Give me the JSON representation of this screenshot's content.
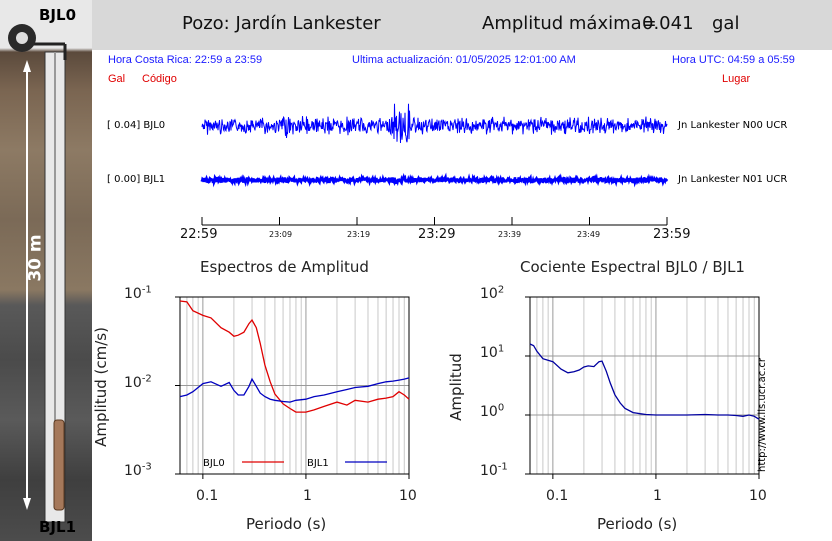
{
  "header": {
    "well": "Pozo: Jardín Lankester",
    "amplitude_label": "Amplitud máxima=",
    "amplitude_value": "0.041",
    "amplitude_unit": "gal"
  },
  "well_strip": {
    "top_label": "BJL0",
    "bottom_label": "BJL1",
    "depth": "30 m"
  },
  "info": {
    "local_time": "Hora Costa Rica:   22:59 a 23:59",
    "last_update": "Ultima actualización:  01/05/2025 12:01:00 AM",
    "utc_time": "Hora UTC:   04:59 a 05:59",
    "col_gal": "Gal",
    "col_code": "Código",
    "col_place": "Lugar"
  },
  "traces": [
    {
      "amp": "[  0.04] BJL0",
      "place": "Jn Lankester N00 UCR",
      "color": "#0000ff",
      "level": 0.04
    },
    {
      "amp": "[  0.00] BJL1",
      "place": "Jn Lankester N01 UCR",
      "color": "#0000ff",
      "level": 0.0
    }
  ],
  "time_axis": {
    "big_ticks": [
      "22:59",
      "23:29",
      "23:59"
    ],
    "small_ticks": [
      "23:09",
      "23:19",
      "23:39",
      "23:49"
    ]
  },
  "credit": "http://www.lis.ucr.ac.cr",
  "chart_data": [
    {
      "type": "line",
      "title": "Espectros de Amplitud",
      "xlabel": "Periodo (s)",
      "ylabel": "Amplitud (cm/s)",
      "xscale": "log",
      "yscale": "log",
      "xlim": [
        0.06,
        10
      ],
      "ylim": [
        0.001,
        0.1
      ],
      "x_ticks": [
        "0.1",
        "1",
        "10"
      ],
      "y_ticks": [
        {
          "base": "10",
          "exp": "-3"
        },
        {
          "base": "10",
          "exp": "-2"
        },
        {
          "base": "10",
          "exp": "-1"
        }
      ],
      "legend": "bottom-left",
      "series": [
        {
          "name": "BJL0",
          "color": "#e00000",
          "x": [
            0.06,
            0.07,
            0.08,
            0.1,
            0.12,
            0.15,
            0.18,
            0.2,
            0.22,
            0.25,
            0.28,
            0.3,
            0.33,
            0.36,
            0.4,
            0.45,
            0.5,
            0.6,
            0.7,
            0.8,
            1,
            1.2,
            1.5,
            2,
            2.5,
            3,
            4,
            5,
            6,
            7,
            8,
            9,
            10
          ],
          "values": [
            0.09,
            0.088,
            0.07,
            0.062,
            0.058,
            0.045,
            0.04,
            0.036,
            0.037,
            0.04,
            0.05,
            0.055,
            0.045,
            0.03,
            0.017,
            0.011,
            0.008,
            0.0062,
            0.0055,
            0.005,
            0.005,
            0.0053,
            0.0058,
            0.0065,
            0.006,
            0.0068,
            0.0065,
            0.007,
            0.0072,
            0.0075,
            0.0085,
            0.0078,
            0.007
          ]
        },
        {
          "name": "BJL1",
          "color": "#0000c0",
          "x": [
            0.06,
            0.07,
            0.08,
            0.1,
            0.12,
            0.15,
            0.18,
            0.2,
            0.22,
            0.25,
            0.28,
            0.3,
            0.33,
            0.36,
            0.4,
            0.45,
            0.5,
            0.6,
            0.7,
            0.8,
            1,
            1.2,
            1.5,
            2,
            2.5,
            3,
            4,
            5,
            6,
            7,
            8,
            9,
            10
          ],
          "values": [
            0.0075,
            0.0078,
            0.0085,
            0.0105,
            0.011,
            0.0098,
            0.0108,
            0.0088,
            0.0078,
            0.0078,
            0.0098,
            0.0118,
            0.0098,
            0.0082,
            0.0075,
            0.007,
            0.0068,
            0.0066,
            0.0065,
            0.0068,
            0.007,
            0.0075,
            0.0078,
            0.0085,
            0.009,
            0.0095,
            0.0098,
            0.0105,
            0.011,
            0.0112,
            0.0115,
            0.0118,
            0.0122
          ]
        }
      ]
    },
    {
      "type": "line",
      "title": "Cociente Espectral BJL0 / BJL1",
      "xlabel": "Periodo (s)",
      "ylabel": "Amplitud",
      "xscale": "log",
      "yscale": "log",
      "xlim": [
        0.06,
        10
      ],
      "ylim": [
        0.1,
        100
      ],
      "x_ticks": [
        "0.1",
        "1",
        "10"
      ],
      "y_ticks": [
        {
          "base": "10",
          "exp": "-1"
        },
        {
          "base": "10",
          "exp": "0"
        },
        {
          "base": "10",
          "exp": "1"
        },
        {
          "base": "10",
          "exp": "2"
        }
      ],
      "series": [
        {
          "color": "#0000a0",
          "x": [
            0.06,
            0.065,
            0.07,
            0.08,
            0.1,
            0.12,
            0.14,
            0.16,
            0.18,
            0.2,
            0.22,
            0.25,
            0.28,
            0.3,
            0.33,
            0.36,
            0.4,
            0.45,
            0.5,
            0.6,
            0.7,
            0.8,
            1,
            1.5,
            2,
            3,
            4,
            5,
            6,
            7,
            8,
            9,
            10
          ],
          "values": [
            16,
            15,
            12,
            9,
            8,
            6,
            5.2,
            5.4,
            5.8,
            6.5,
            6.8,
            6.6,
            8,
            8.2,
            5.5,
            3.5,
            2.2,
            1.6,
            1.3,
            1.1,
            1.05,
            1.02,
            1.0,
            1.0,
            1.0,
            1.02,
            1.0,
            1.0,
            0.98,
            0.95,
            1.0,
            0.95,
            0.85
          ]
        }
      ]
    }
  ]
}
